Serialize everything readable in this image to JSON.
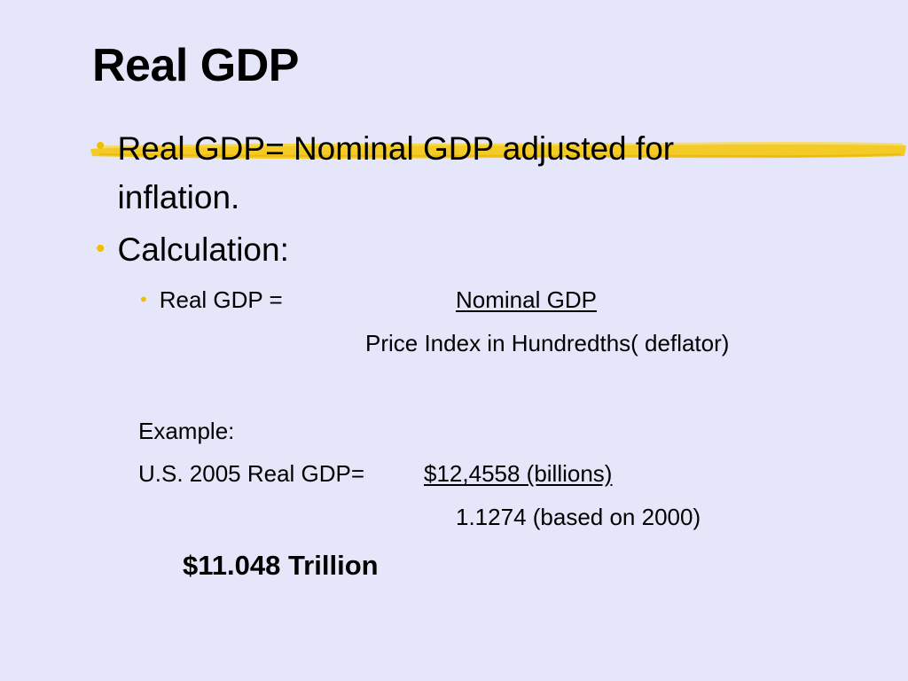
{
  "slide": {
    "title": "Real GDP",
    "bullets": [
      {
        "text": "Real GDP= Nominal GDP adjusted for inflation."
      },
      {
        "text": "Calculation:"
      }
    ],
    "sub_bullet": {
      "label": "Real GDP =",
      "numerator": "Nominal GDP",
      "denominator": "Price Index in Hundredths( deflator)"
    },
    "example": {
      "heading": "Example:",
      "label": "U.S. 2005 Real GDP=",
      "numerator": "$12,4558 (billions)",
      "denominator": "1.1274 (based on 2000)",
      "result": "$11.048 Trillion"
    },
    "colors": {
      "background": "#e6e6fa",
      "bullet": "#f0c000",
      "highlight": "#f5c400"
    }
  }
}
